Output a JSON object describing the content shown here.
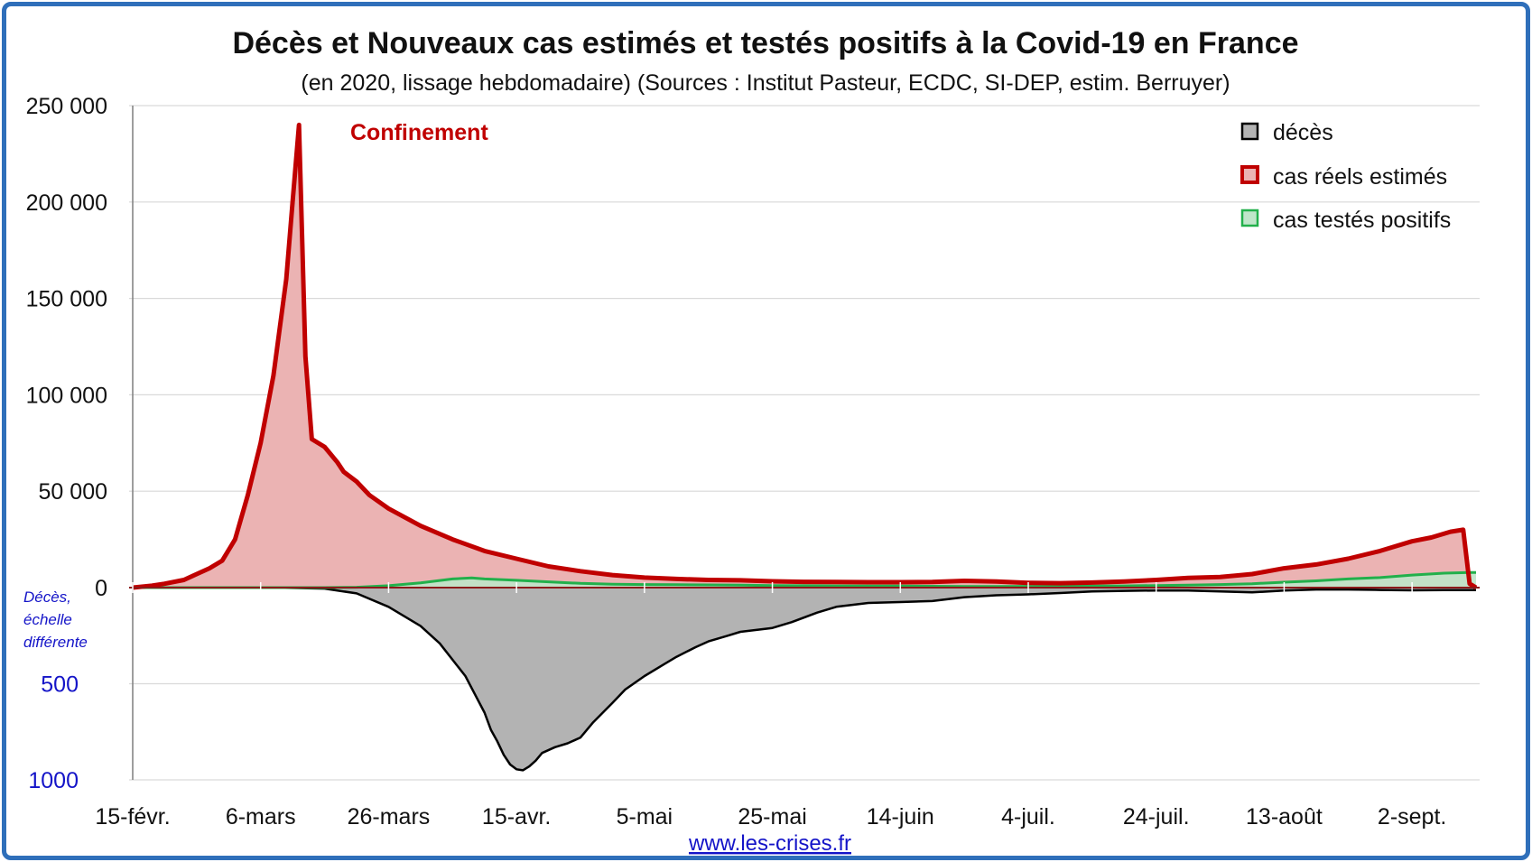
{
  "chart_data": {
    "type": "area",
    "title": "Décès et Nouveaux cas estimés et testés positifs à la Covid-19 en France",
    "subtitle": "(en 2020, lissage hebdomadaire) (Sources : Institut Pasteur, ECDC, SI-DEP, estim. Berruyer)",
    "x_tick_labels": [
      "15-févr.",
      "6-mars",
      "26-mars",
      "15-avr.",
      "5-mai",
      "25-mai",
      "14-juin",
      "4-juil.",
      "24-juil.",
      "13-août",
      "2-sept."
    ],
    "x_range_days": [
      0,
      210
    ],
    "y_ticks": [
      {
        "value": 250000,
        "label": "250 000"
      },
      {
        "value": 200000,
        "label": "200 000"
      },
      {
        "value": 150000,
        "label": "150 000"
      },
      {
        "value": 100000,
        "label": "100 000"
      },
      {
        "value": 50000,
        "label": "50 000"
      },
      {
        "value": 0,
        "label": "0"
      }
    ],
    "y_range_cases": [
      0,
      250000
    ],
    "deaths_ticks": [
      {
        "value": 500,
        "label": "500"
      },
      {
        "value": 1000,
        "label": "1000"
      }
    ],
    "deaths_range": [
      0,
      1000
    ],
    "annotation": "Confinement",
    "deaths_axis_note": [
      "Décès,",
      "échelle",
      "différente"
    ],
    "grid": true,
    "legend_position": "top-right",
    "colors": {
      "deces_fill": "#b3b3b3",
      "deces_line": "#000000",
      "cas_fill": "#ebb3b3",
      "cas_line": "#c00000",
      "tests_fill": "#bfe6c9",
      "tests_line": "#22b04b",
      "grid": "#d9d9d9",
      "frame": "#2f6fba",
      "blue_text": "#1414c8"
    },
    "series": [
      {
        "name": "décès",
        "note": "deaths per day, drawn downward on separate scale",
        "points": [
          [
            0,
            0
          ],
          [
            22,
            0
          ],
          [
            30,
            5
          ],
          [
            35,
            30
          ],
          [
            40,
            100
          ],
          [
            45,
            200
          ],
          [
            48,
            290
          ],
          [
            52,
            460
          ],
          [
            55,
            650
          ],
          [
            56,
            740
          ],
          [
            57,
            800
          ],
          [
            58,
            870
          ],
          [
            59,
            920
          ],
          [
            60,
            945
          ],
          [
            61,
            950
          ],
          [
            62,
            930
          ],
          [
            63,
            900
          ],
          [
            64,
            860
          ],
          [
            66,
            830
          ],
          [
            68,
            810
          ],
          [
            69,
            795
          ],
          [
            70,
            780
          ],
          [
            72,
            700
          ],
          [
            75,
            600
          ],
          [
            77,
            530
          ],
          [
            80,
            460
          ],
          [
            83,
            400
          ],
          [
            85,
            360
          ],
          [
            88,
            310
          ],
          [
            90,
            280
          ],
          [
            93,
            250
          ],
          [
            95,
            230
          ],
          [
            100,
            210
          ],
          [
            103,
            180
          ],
          [
            107,
            130
          ],
          [
            110,
            100
          ],
          [
            115,
            80
          ],
          [
            120,
            75
          ],
          [
            125,
            70
          ],
          [
            130,
            50
          ],
          [
            135,
            40
          ],
          [
            140,
            35
          ],
          [
            145,
            28
          ],
          [
            150,
            20
          ],
          [
            155,
            17
          ],
          [
            160,
            15
          ],
          [
            165,
            15
          ],
          [
            170,
            20
          ],
          [
            175,
            25
          ],
          [
            180,
            15
          ],
          [
            185,
            10
          ],
          [
            190,
            10
          ],
          [
            195,
            12
          ],
          [
            200,
            14
          ],
          [
            205,
            13
          ],
          [
            210,
            13
          ]
        ]
      },
      {
        "name": "cas réels estimés",
        "points": [
          [
            0,
            0
          ],
          [
            3,
            1000
          ],
          [
            5,
            2000
          ],
          [
            8,
            4000
          ],
          [
            10,
            7000
          ],
          [
            12,
            10000
          ],
          [
            14,
            14000
          ],
          [
            16,
            25000
          ],
          [
            18,
            48000
          ],
          [
            20,
            75000
          ],
          [
            22,
            110000
          ],
          [
            24,
            160000
          ],
          [
            25,
            200000
          ],
          [
            26,
            240000
          ],
          [
            27,
            120000
          ],
          [
            28,
            77000
          ],
          [
            30,
            73000
          ],
          [
            32,
            65000
          ],
          [
            33,
            60000
          ],
          [
            35,
            55000
          ],
          [
            37,
            48000
          ],
          [
            40,
            41000
          ],
          [
            45,
            32000
          ],
          [
            50,
            25000
          ],
          [
            55,
            19000
          ],
          [
            60,
            15000
          ],
          [
            65,
            11000
          ],
          [
            70,
            8500
          ],
          [
            75,
            6500
          ],
          [
            80,
            5200
          ],
          [
            85,
            4500
          ],
          [
            90,
            4000
          ],
          [
            95,
            3800
          ],
          [
            100,
            3300
          ],
          [
            105,
            3000
          ],
          [
            110,
            2900
          ],
          [
            115,
            2800
          ],
          [
            120,
            2800
          ],
          [
            125,
            2900
          ],
          [
            130,
            3500
          ],
          [
            135,
            3200
          ],
          [
            140,
            2500
          ],
          [
            145,
            2300
          ],
          [
            150,
            2600
          ],
          [
            155,
            3200
          ],
          [
            160,
            4000
          ],
          [
            165,
            5000
          ],
          [
            170,
            5500
          ],
          [
            175,
            7000
          ],
          [
            180,
            10000
          ],
          [
            185,
            12000
          ],
          [
            190,
            15000
          ],
          [
            195,
            19000
          ],
          [
            200,
            24000
          ],
          [
            203,
            26000
          ],
          [
            206,
            29000
          ],
          [
            208,
            30000
          ],
          [
            209,
            2000
          ],
          [
            210,
            0
          ]
        ]
      },
      {
        "name": "cas testés positifs",
        "points": [
          [
            0,
            0
          ],
          [
            30,
            0
          ],
          [
            35,
            200
          ],
          [
            40,
            1000
          ],
          [
            45,
            2500
          ],
          [
            50,
            4500
          ],
          [
            53,
            5000
          ],
          [
            55,
            4500
          ],
          [
            60,
            3800
          ],
          [
            65,
            3000
          ],
          [
            70,
            2200
          ],
          [
            75,
            1800
          ],
          [
            80,
            1600
          ],
          [
            85,
            1500
          ],
          [
            90,
            1400
          ],
          [
            95,
            1300
          ],
          [
            100,
            1100
          ],
          [
            105,
            1000
          ],
          [
            110,
            900
          ],
          [
            115,
            850
          ],
          [
            120,
            800
          ],
          [
            125,
            700
          ],
          [
            130,
            600
          ],
          [
            135,
            600
          ],
          [
            140,
            650
          ],
          [
            145,
            700
          ],
          [
            150,
            800
          ],
          [
            155,
            900
          ],
          [
            160,
            1100
          ],
          [
            165,
            1300
          ],
          [
            170,
            1600
          ],
          [
            175,
            2000
          ],
          [
            180,
            2800
          ],
          [
            185,
            3500
          ],
          [
            190,
            4500
          ],
          [
            195,
            5200
          ],
          [
            200,
            6500
          ],
          [
            205,
            7500
          ],
          [
            209,
            7800
          ],
          [
            210,
            7800
          ]
        ]
      }
    ]
  },
  "footer": {
    "link_text": "www.les-crises.fr"
  }
}
